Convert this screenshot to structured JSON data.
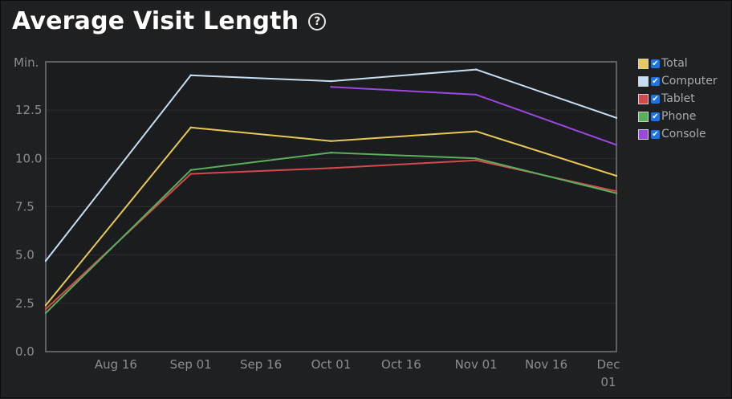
{
  "header": {
    "title": "Average Visit Length",
    "help_icon": "?"
  },
  "colors": {
    "background": "#1f2022",
    "plot_background": "#1b1c1e",
    "axis": "#5e6063",
    "grid": "#2c2d30",
    "tick_text": "#8b8d90",
    "checkbox": "#1a73e8"
  },
  "chart_data": {
    "type": "line",
    "ylabel": "Min.",
    "ylim": [
      0,
      15
    ],
    "yticks": [
      "0.0",
      "2.5",
      "5.0",
      "7.5",
      "10.0",
      "12.5"
    ],
    "xlim": [
      "2024-08-01",
      "2024-12-01"
    ],
    "x_ticks": [
      {
        "date": "2024-08-16",
        "label": "Aug 16"
      },
      {
        "date": "2024-09-01",
        "label": "Sep 01"
      },
      {
        "date": "2024-09-16",
        "label": "Sep 16"
      },
      {
        "date": "2024-10-01",
        "label": "Oct 01"
      },
      {
        "date": "2024-10-16",
        "label": "Oct 16"
      },
      {
        "date": "2024-11-01",
        "label": "Nov 01"
      },
      {
        "date": "2024-11-16",
        "label": "Nov 16"
      },
      {
        "date": "2024-12-01",
        "label": "Dec 01"
      }
    ],
    "grid": true,
    "legend_position": "right",
    "series": [
      {
        "name": "Total",
        "color": "#e9c857",
        "checked": true,
        "points": [
          [
            "2024-08-01",
            2.4
          ],
          [
            "2024-09-01",
            11.6
          ],
          [
            "2024-10-01",
            10.9
          ],
          [
            "2024-11-01",
            11.4
          ],
          [
            "2024-12-01",
            9.1
          ]
        ]
      },
      {
        "name": "Computer",
        "color": "#c6def2",
        "checked": true,
        "points": [
          [
            "2024-08-01",
            4.7
          ],
          [
            "2024-09-01",
            14.3
          ],
          [
            "2024-10-01",
            14.0
          ],
          [
            "2024-11-01",
            14.6
          ],
          [
            "2024-12-01",
            12.1
          ]
        ]
      },
      {
        "name": "Tablet",
        "color": "#d4494c",
        "checked": true,
        "points": [
          [
            "2024-08-01",
            2.2
          ],
          [
            "2024-09-01",
            9.2
          ],
          [
            "2024-10-01",
            9.5
          ],
          [
            "2024-11-01",
            9.9
          ],
          [
            "2024-12-01",
            8.3
          ]
        ]
      },
      {
        "name": "Phone",
        "color": "#58b05b",
        "checked": true,
        "points": [
          [
            "2024-08-01",
            2.0
          ],
          [
            "2024-09-01",
            9.4
          ],
          [
            "2024-10-01",
            10.3
          ],
          [
            "2024-11-01",
            10.0
          ],
          [
            "2024-12-01",
            8.2
          ]
        ]
      },
      {
        "name": "Console",
        "color": "#9b48e2",
        "checked": true,
        "points": [
          [
            "2024-10-01",
            13.7
          ],
          [
            "2024-11-01",
            13.3
          ],
          [
            "2024-12-01",
            10.7
          ]
        ]
      }
    ]
  }
}
